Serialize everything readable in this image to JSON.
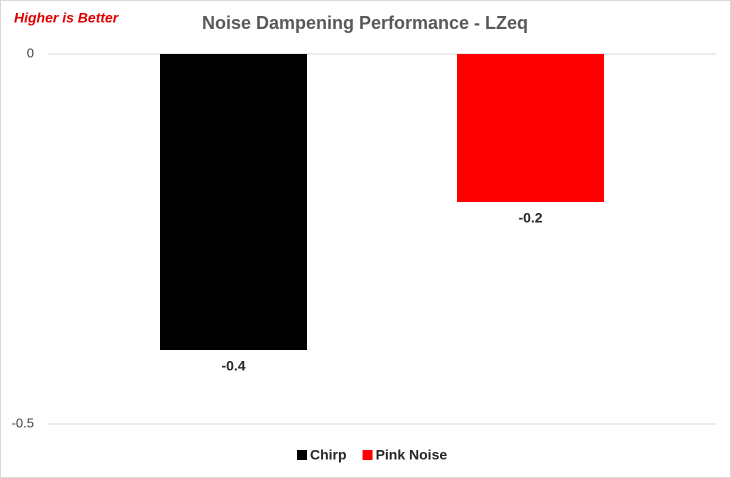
{
  "chart_data": {
    "type": "bar",
    "title": "Noise Dampening Performance - LZeq",
    "annotation": "Higher is Better",
    "categories": [
      null
    ],
    "series": [
      {
        "name": "Chirp",
        "color": "#000000",
        "values": [
          -0.4
        ]
      },
      {
        "name": "Pink Noise",
        "color": "#ff0000",
        "values": [
          -0.2
        ]
      }
    ],
    "ylim": [
      -0.5,
      0
    ],
    "yticks": [
      -0.5,
      0
    ],
    "grid": true,
    "legend": "bottom"
  }
}
